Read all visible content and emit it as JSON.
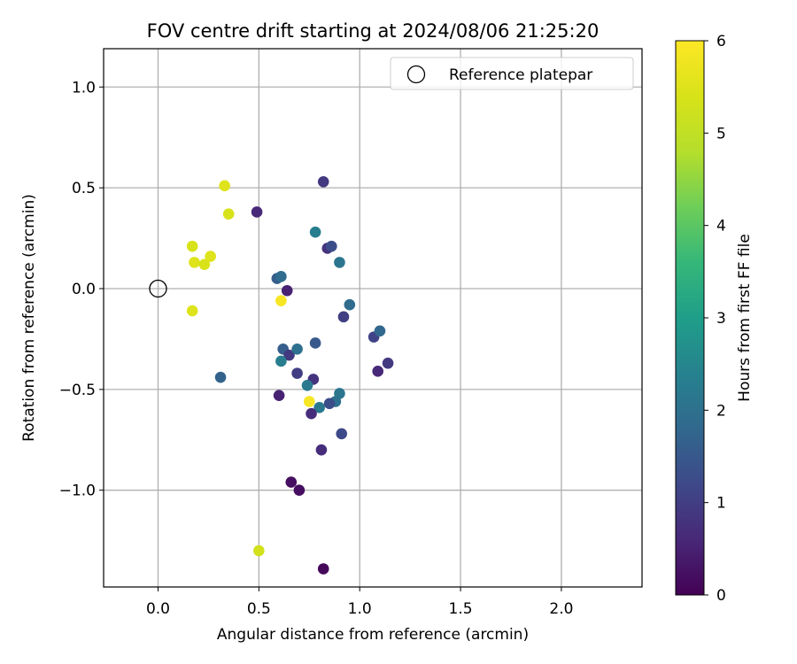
{
  "chart_data": {
    "type": "scatter",
    "title": "FOV centre drift starting at 2024/08/06 21:25:20",
    "xlabel": "Angular distance from reference (arcmin)",
    "ylabel": "Rotation from reference (arcmin)",
    "xlim": [
      -0.27,
      2.4
    ],
    "ylim": [
      -1.48,
      1.19
    ],
    "xticks": [
      0.0,
      0.5,
      1.0,
      1.5,
      2.0
    ],
    "xtick_labels": [
      "0.0",
      "0.5",
      "1.0",
      "1.5",
      "2.0"
    ],
    "yticks": [
      -1.0,
      -0.5,
      0.0,
      0.5,
      1.0
    ],
    "ytick_labels": [
      "−1.0",
      "−0.5",
      "0.0",
      "0.5",
      "1.0"
    ],
    "grid": true,
    "legend": {
      "label": "Reference platepar",
      "placement": "top-right"
    },
    "reference_point": [
      0.0,
      0.0
    ],
    "colorbar": {
      "label": "Hours from first FF file",
      "range": [
        0,
        6
      ],
      "ticks": [
        0,
        1,
        2,
        3,
        4,
        5,
        6
      ],
      "colormap": "viridis"
    },
    "points": [
      {
        "x": 0.82,
        "y": 0.53,
        "hours": 0.9
      },
      {
        "x": 0.49,
        "y": 0.38,
        "hours": 0.6
      },
      {
        "x": 0.84,
        "y": 0.2,
        "hours": 0.8
      },
      {
        "x": 0.86,
        "y": 0.21,
        "hours": 1.3
      },
      {
        "x": 0.78,
        "y": 0.28,
        "hours": 2.3
      },
      {
        "x": 0.9,
        "y": 0.13,
        "hours": 2.1
      },
      {
        "x": 0.59,
        "y": 0.05,
        "hours": 1.6
      },
      {
        "x": 0.61,
        "y": 0.06,
        "hours": 1.9
      },
      {
        "x": 0.64,
        "y": -0.01,
        "hours": 0.5
      },
      {
        "x": 0.95,
        "y": -0.08,
        "hours": 1.9
      },
      {
        "x": 0.92,
        "y": -0.14,
        "hours": 1.0
      },
      {
        "x": 1.07,
        "y": -0.24,
        "hours": 1.1
      },
      {
        "x": 1.1,
        "y": -0.21,
        "hours": 1.8
      },
      {
        "x": 1.14,
        "y": -0.37,
        "hours": 0.9
      },
      {
        "x": 1.09,
        "y": -0.41,
        "hours": 0.6
      },
      {
        "x": 0.78,
        "y": -0.27,
        "hours": 1.5
      },
      {
        "x": 0.62,
        "y": -0.3,
        "hours": 1.6
      },
      {
        "x": 0.65,
        "y": -0.33,
        "hours": 0.9
      },
      {
        "x": 0.69,
        "y": -0.3,
        "hours": 2.0
      },
      {
        "x": 0.61,
        "y": -0.36,
        "hours": 2.3
      },
      {
        "x": 0.69,
        "y": -0.42,
        "hours": 1.0
      },
      {
        "x": 0.77,
        "y": -0.45,
        "hours": 0.8
      },
      {
        "x": 0.74,
        "y": -0.48,
        "hours": 2.2
      },
      {
        "x": 0.6,
        "y": -0.53,
        "hours": 0.5
      },
      {
        "x": 0.9,
        "y": -0.52,
        "hours": 2.1
      },
      {
        "x": 0.88,
        "y": -0.56,
        "hours": 2.0
      },
      {
        "x": 0.85,
        "y": -0.57,
        "hours": 1.3
      },
      {
        "x": 0.8,
        "y": -0.59,
        "hours": 2.2
      },
      {
        "x": 0.76,
        "y": -0.62,
        "hours": 0.7
      },
      {
        "x": 0.91,
        "y": -0.72,
        "hours": 1.2
      },
      {
        "x": 0.81,
        "y": -0.8,
        "hours": 0.7
      },
      {
        "x": 0.66,
        "y": -0.96,
        "hours": 0.2
      },
      {
        "x": 0.7,
        "y": -1.0,
        "hours": 0.2
      },
      {
        "x": 0.82,
        "y": -1.39,
        "hours": 0.1
      },
      {
        "x": 0.31,
        "y": -0.44,
        "hours": 1.7
      },
      {
        "x": 0.33,
        "y": 0.51,
        "hours": 5.5
      },
      {
        "x": 0.35,
        "y": 0.37,
        "hours": 5.4
      },
      {
        "x": 0.17,
        "y": 0.21,
        "hours": 5.4
      },
      {
        "x": 0.18,
        "y": 0.13,
        "hours": 5.5
      },
      {
        "x": 0.23,
        "y": 0.12,
        "hours": 5.4
      },
      {
        "x": 0.26,
        "y": 0.16,
        "hours": 5.5
      },
      {
        "x": 0.17,
        "y": -0.11,
        "hours": 5.5
      },
      {
        "x": 0.61,
        "y": -0.06,
        "hours": 5.9
      },
      {
        "x": 0.75,
        "y": -0.56,
        "hours": 5.9
      },
      {
        "x": 0.5,
        "y": -1.3,
        "hours": 5.3
      }
    ]
  }
}
